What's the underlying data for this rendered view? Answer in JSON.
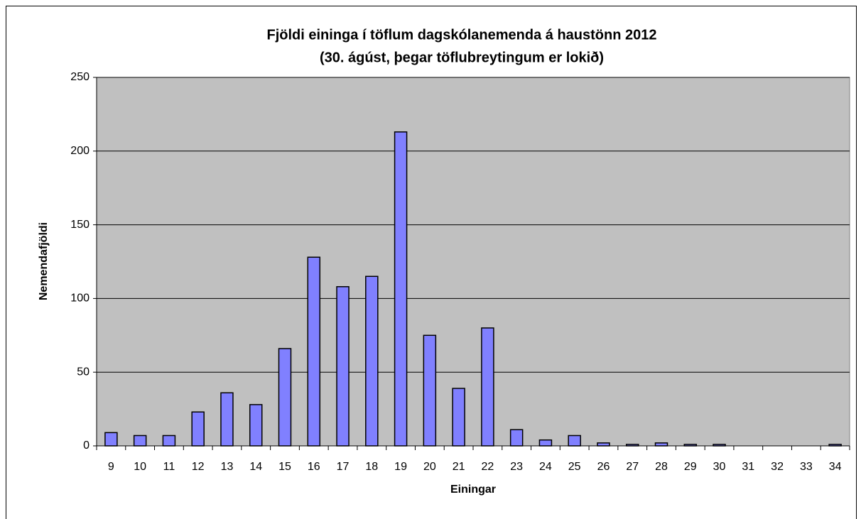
{
  "chart_data": {
    "type": "bar",
    "title": "Fjöldi eininga í töflum dagskólanemenda á haustönn 2012",
    "subtitle": "(30. ágúst, þegar töflubreytingum er lokið)",
    "x_label": "Einingar",
    "y_label": "Nemendafjöldi",
    "categories": [
      "9",
      "10",
      "11",
      "12",
      "13",
      "14",
      "15",
      "16",
      "17",
      "18",
      "19",
      "20",
      "21",
      "22",
      "23",
      "24",
      "25",
      "26",
      "27",
      "28",
      "29",
      "30",
      "31",
      "32",
      "33",
      "34"
    ],
    "values": [
      9,
      7,
      7,
      23,
      36,
      28,
      66,
      128,
      108,
      115,
      213,
      75,
      39,
      80,
      11,
      4,
      7,
      2,
      1,
      2,
      1,
      1,
      0,
      0,
      0,
      1
    ],
    "color": "#8080ff",
    "background": "#c0c0c0",
    "ylim": [
      0,
      250
    ],
    "yticks": [
      0,
      50,
      100,
      150,
      200,
      250
    ],
    "grid": true
  }
}
